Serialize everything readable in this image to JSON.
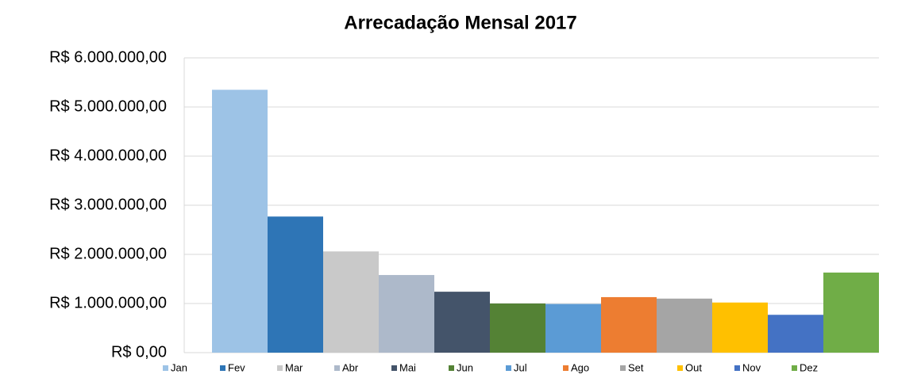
{
  "chart_data": {
    "type": "bar",
    "title": "Arrecadação Mensal 2017",
    "ylim": [
      0,
      6000000
    ],
    "yticks": [
      {
        "value": 0,
        "label": "R$ 0,00"
      },
      {
        "value": 1000000,
        "label": "R$ 1.000.000,00"
      },
      {
        "value": 2000000,
        "label": "R$ 2.000.000,00"
      },
      {
        "value": 3000000,
        "label": "R$ 3.000.000,00"
      },
      {
        "value": 4000000,
        "label": "R$ 4.000.000,00"
      },
      {
        "value": 5000000,
        "label": "R$ 5.000.000,00"
      },
      {
        "value": 6000000,
        "label": "R$ 6.000.000,00"
      }
    ],
    "grid": true,
    "legend": "bottom",
    "series": [
      {
        "name": "Jan",
        "color": "#9dc3e6",
        "values": [
          5350000
        ]
      },
      {
        "name": "Fev",
        "color": "#2e75b6",
        "values": [
          2770000
        ]
      },
      {
        "name": "Mar",
        "color": "#c9c9c9",
        "values": [
          2060000
        ]
      },
      {
        "name": "Abr",
        "color": "#adb9ca",
        "values": [
          1580000
        ]
      },
      {
        "name": "Mai",
        "color": "#44546a",
        "values": [
          1240000
        ]
      },
      {
        "name": "Jun",
        "color": "#548235",
        "values": [
          1000000
        ]
      },
      {
        "name": "Jul",
        "color": "#5b9bd5",
        "values": [
          990000
        ]
      },
      {
        "name": "Ago",
        "color": "#ed7d31",
        "values": [
          1130000
        ]
      },
      {
        "name": "Set",
        "color": "#a5a5a5",
        "values": [
          1100000
        ]
      },
      {
        "name": "Out",
        "color": "#ffc000",
        "values": [
          1020000
        ]
      },
      {
        "name": "Nov",
        "color": "#4472c4",
        "values": [
          770000
        ]
      },
      {
        "name": "Dez",
        "color": "#70ad47",
        "values": [
          1630000
        ]
      }
    ]
  }
}
